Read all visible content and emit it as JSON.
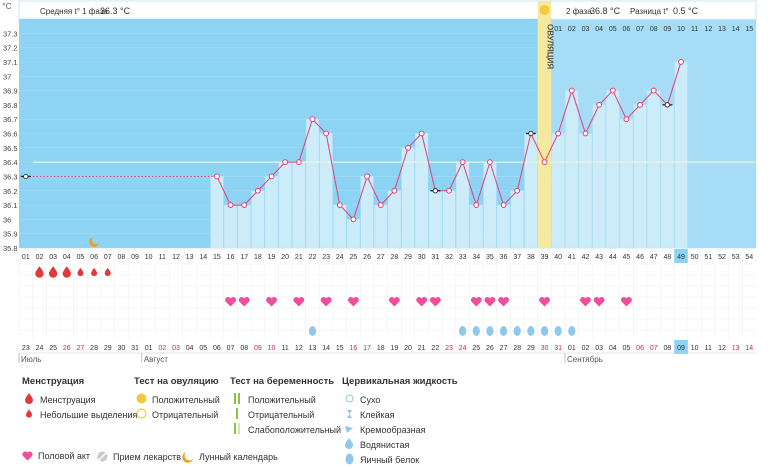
{
  "header": {
    "unit": "°C",
    "phase1_label": "Средняя t° 1 фаза",
    "phase1_value": "36.3 °C",
    "phase2_label": "2 фаза",
    "phase2_value": "36.8 °C",
    "diff_label": "Разница t°",
    "diff_value": "0.5 °C",
    "ovulation_label": "ОВУЛЯЦИЯ"
  },
  "chart_data": {
    "type": "bar",
    "ylim": [
      35.8,
      37.4
    ],
    "yticks": [
      "35.8",
      "35.9",
      "36",
      "36.1",
      "36.2",
      "36.3",
      "36.4",
      "36.5",
      "36.6",
      "36.7",
      "36.8",
      "36.9",
      "37",
      "37.1",
      "37.2",
      "37.3"
    ],
    "cycle_days": [
      "01",
      "02",
      "03",
      "04",
      "05",
      "06",
      "07",
      "08",
      "09",
      "10",
      "11",
      "12",
      "13",
      "14",
      "15",
      "16",
      "17",
      "18",
      "19",
      "20",
      "21",
      "22",
      "23",
      "24",
      "25",
      "26",
      "27",
      "28",
      "29",
      "30",
      "31",
      "32",
      "33",
      "34",
      "35",
      "36",
      "37",
      "38",
      "39",
      "40",
      "41",
      "42",
      "43",
      "44",
      "45",
      "46",
      "47",
      "48",
      "49",
      "50",
      "51",
      "52",
      "53",
      "54"
    ],
    "temperatures": [
      36.3,
      null,
      null,
      null,
      null,
      null,
      null,
      null,
      null,
      null,
      null,
      null,
      null,
      null,
      36.3,
      36.1,
      36.1,
      36.2,
      36.3,
      36.4,
      36.4,
      36.7,
      36.6,
      36.1,
      36.0,
      36.3,
      36.1,
      36.2,
      36.5,
      36.6,
      36.2,
      36.2,
      36.4,
      36.1,
      36.4,
      36.1,
      36.2,
      36.6,
      36.4,
      36.6,
      36.9,
      36.6,
      36.8,
      36.9,
      36.7,
      36.8,
      36.9,
      36.8,
      37.1
    ],
    "excluded_points": [
      1,
      31,
      38,
      48
    ],
    "cover_line": 36.4,
    "ovulation_day": 39,
    "luteal_labels": [
      "01",
      "02",
      "03",
      "04",
      "05",
      "06",
      "07",
      "08",
      "09",
      "10",
      "11",
      "12",
      "13",
      "14",
      "15"
    ],
    "current_day": 49,
    "moon_day": 6,
    "menstruation": [
      {
        "day": 2,
        "type": "heavy"
      },
      {
        "day": 3,
        "type": "heavy"
      },
      {
        "day": 4,
        "type": "heavy"
      },
      {
        "day": 5,
        "type": "light"
      },
      {
        "day": 6,
        "type": "light"
      },
      {
        "day": 7,
        "type": "light"
      }
    ],
    "intercourse_days": [
      16,
      17,
      19,
      21,
      23,
      25,
      28,
      30,
      31,
      34,
      35,
      36,
      39,
      42,
      43,
      45
    ],
    "eggwhite_days": [
      22,
      33,
      34,
      35,
      36,
      37,
      38,
      39,
      40,
      41
    ],
    "dates": [
      "23",
      "24",
      "25",
      "26",
      "27",
      "28",
      "29",
      "30",
      "31",
      "01",
      "02",
      "03",
      "04",
      "05",
      "06",
      "07",
      "08",
      "09",
      "10",
      "11",
      "12",
      "13",
      "14",
      "15",
      "16",
      "17",
      "18",
      "19",
      "20",
      "21",
      "22",
      "23",
      "24",
      "25",
      "26",
      "27",
      "28",
      "29",
      "30",
      "31",
      "01",
      "02",
      "03",
      "04",
      "05",
      "06",
      "07",
      "08",
      "09",
      "10",
      "11",
      "12",
      "13",
      "14"
    ],
    "weekend_days": [
      4,
      5,
      11,
      12,
      18,
      19,
      25,
      26,
      32,
      33,
      39,
      40,
      46,
      47,
      53,
      54
    ],
    "months": [
      {
        "name": "Июль",
        "day": 1
      },
      {
        "name": "Август",
        "day": 10
      },
      {
        "name": "Сентябрь",
        "day": 41
      }
    ]
  },
  "legend": {
    "menstruation": {
      "title": "Менструация",
      "items": [
        "Менструация",
        "Небольшие выделения"
      ]
    },
    "ovulation_test": {
      "title": "Тест на овуляцию",
      "items": [
        "Положительный",
        "Отрицательный"
      ]
    },
    "pregnancy_test": {
      "title": "Тест на беременность",
      "items": [
        "Положительный",
        "Отрицательный",
        "Слабоположительный"
      ]
    },
    "cervical": {
      "title": "Цервикальная жидкость",
      "items": [
        "Сухо",
        "Клейкая",
        "Кремообразная",
        "Водянистая",
        "Яичный белок"
      ]
    },
    "bottom": [
      "Половой акт",
      "Прием лекарств",
      "Лунный календарь"
    ]
  },
  "colors": {
    "chart_bg": "#8dd3f3",
    "bar": "#ccecfa",
    "line": "#e0407a",
    "ovulation": "#f5e9a0",
    "heart": "#ef4f9a",
    "drop_red": "#e23a3a",
    "drop_blue": "#8fc8ec",
    "weekend": "#d8224d",
    "moon": "#f0a020"
  }
}
